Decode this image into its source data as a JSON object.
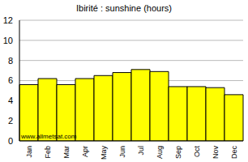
{
  "chart_data": {
    "type": "bar",
    "title": "Ibirité : sunshine (hours)",
    "categories": [
      "Jan",
      "Feb",
      "Mar",
      "Apr",
      "May",
      "Jun",
      "Jul",
      "Aug",
      "Sep",
      "Oct",
      "Nov",
      "Dec"
    ],
    "values": [
      5.6,
      6.2,
      5.6,
      6.2,
      6.5,
      6.8,
      7.1,
      6.9,
      5.4,
      5.4,
      5.3,
      4.6
    ],
    "color": "#ffff00",
    "ylim": [
      0,
      12
    ],
    "yticks": [
      0,
      2,
      4,
      6,
      8,
      10,
      12
    ],
    "grid": true,
    "annotations": [
      "www.allmetsat.com"
    ]
  }
}
